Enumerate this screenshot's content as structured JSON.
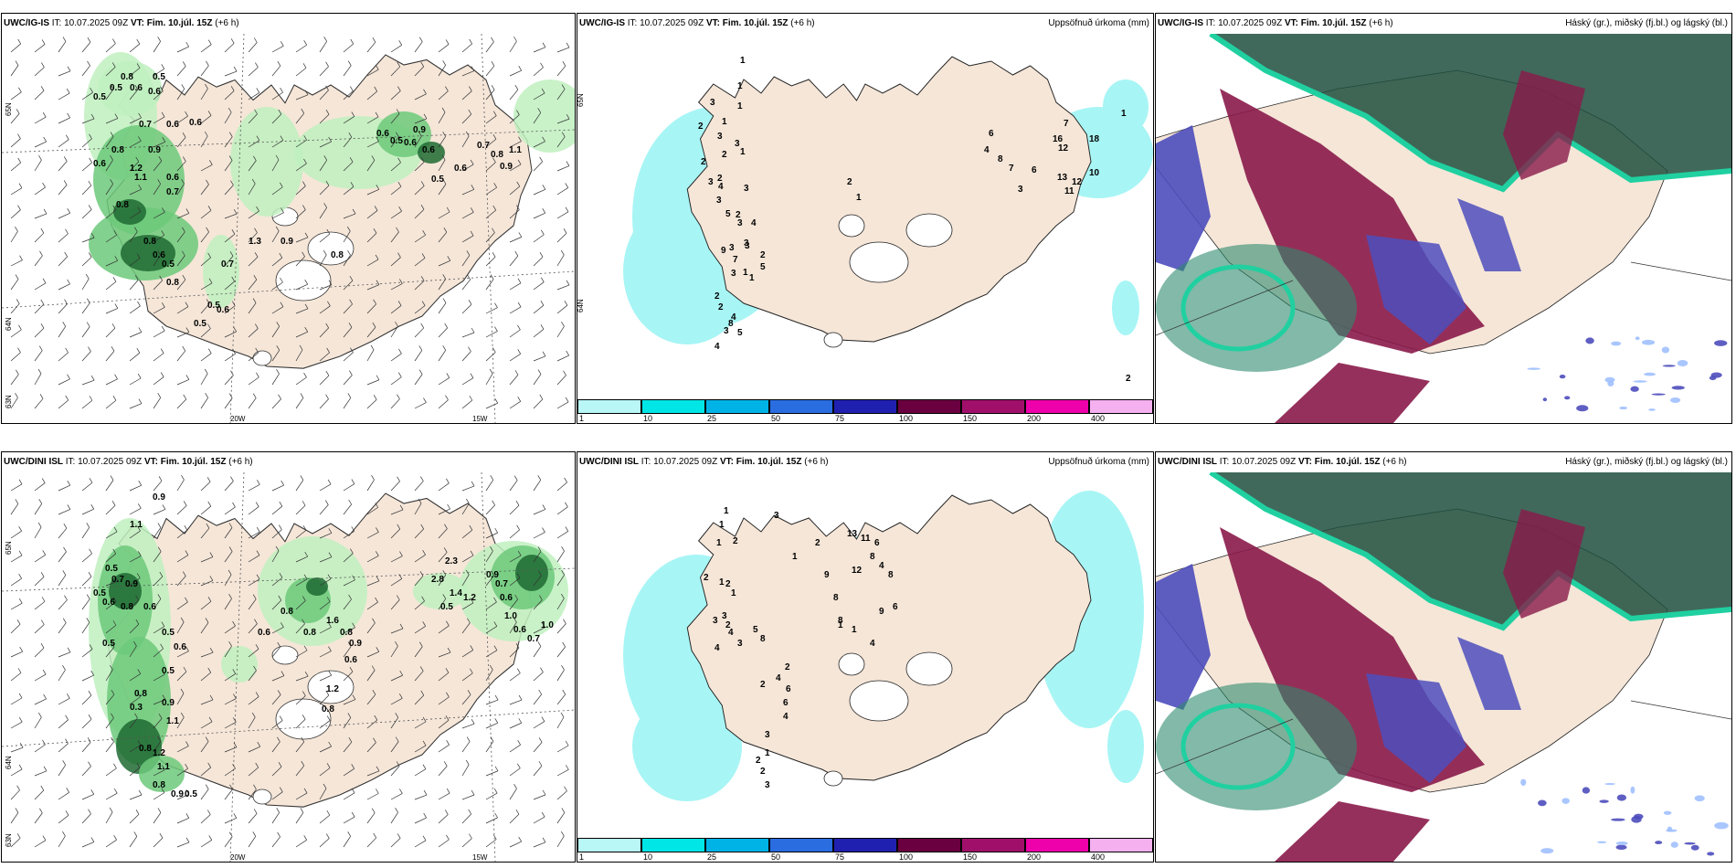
{
  "colors": {
    "land": "#f5e6d8",
    "sea": "#ffffff",
    "precip_light": "#bff0c0",
    "precip_mid": "#6cc97a",
    "precip_dark": "#1e6a32",
    "precip_bluegreen": "#a8f5f5",
    "cloud_high": "#1f4f3e",
    "cloud_mid": "#8a1a4a",
    "cloud_low": "#4d4dbd",
    "cloud_cyan": "#20d0a0"
  },
  "panels": [
    {
      "id": "ig-top-wind",
      "model": "UWC/IG-IS",
      "it_label": "IT:",
      "it_value": "10.07.2025 09Z",
      "vt_label": "VT:",
      "vt_value": "Fim. 10.júl. 15Z",
      "lead": "(+6 h)",
      "right_title": "",
      "lat_labels": [
        "65N",
        "64N",
        "63N"
      ],
      "lon_labels": [
        "20W",
        "15W"
      ],
      "values": [
        "0.8",
        "0.5",
        "0.5",
        "0.6",
        "0.6",
        "0.5",
        "0.7",
        "0.6",
        "0.6",
        "0.8",
        "0.9",
        "0.6",
        "1.2",
        "1.1",
        "0.6",
        "0.7",
        "0.8",
        "0.8",
        "0.6",
        "0.5",
        "0.8",
        "0.5",
        "0.6",
        "0.5",
        "1.3",
        "0.7",
        "0.9",
        "0.8",
        "0.6",
        "0.5",
        "0.6",
        "0.9",
        "0.6",
        "0.5",
        "0.6",
        "0.7",
        "0.8",
        "0.9",
        "1.1"
      ]
    },
    {
      "id": "ig-top-precip",
      "model": "UWC/IG-IS",
      "it_label": "IT:",
      "it_value": "10.07.2025 09Z",
      "vt_label": "VT:",
      "vt_value": "Fim. 10.júl. 15Z",
      "lead": "(+6 h)",
      "right_title": "Uppsöfnuð úrkoma (mm)",
      "lat_labels": [
        "65N",
        "64N"
      ],
      "lon_labels": [],
      "values": [
        "1",
        "1",
        "1",
        "1",
        "3",
        "2",
        "2",
        "3",
        "3",
        "1",
        "2",
        "2",
        "3",
        "4",
        "3",
        "3",
        "2",
        "3",
        "4",
        "3",
        "5",
        "3",
        "3",
        "9",
        "7",
        "3",
        "2",
        "2",
        "4",
        "3",
        "4",
        "8",
        "5",
        "2",
        "5",
        "1",
        "1",
        "2",
        "1",
        "6",
        "4",
        "8",
        "7",
        "3",
        "6",
        "16",
        "12",
        "13",
        "12",
        "11",
        "10",
        "7",
        "18",
        "1",
        "2"
      ],
      "colorbar": {
        "ticks": [
          "1",
          "10",
          "25",
          "50",
          "75",
          "100",
          "150",
          "200",
          "400"
        ],
        "colors": [
          "#b9f6f6",
          "#00e5e5",
          "#00b3e6",
          "#2a6de0",
          "#2020b0",
          "#6a0040",
          "#a0106a",
          "#ee00aa",
          "#f5b0f0"
        ]
      }
    },
    {
      "id": "ig-top-cloud",
      "model": "UWC/IG-IS",
      "it_label": "IT:",
      "it_value": "10.07.2025 09Z",
      "vt_label": "VT:",
      "vt_value": "Fim. 10.júl. 15Z",
      "lead": "(+6 h)",
      "right_title": "Háský (gr.), miðský (fj.bl.) og lágský (bl.)"
    },
    {
      "id": "dini-bottom-wind",
      "model": "UWC/DINI ISL",
      "it_label": "IT:",
      "it_value": "10.07.2025 09Z",
      "vt_label": "VT:",
      "vt_value": "Fim. 10.júl. 15Z",
      "lead": "(+6 h)",
      "right_title": "",
      "lat_labels": [
        "65N",
        "64N",
        "63N"
      ],
      "lon_labels": [
        "20W",
        "15W"
      ],
      "values": [
        "0.9",
        "1.1",
        "0.5",
        "0.7",
        "0.9",
        "0.5",
        "0.6",
        "0.8",
        "0.6",
        "0.5",
        "0.5",
        "0.6",
        "0.5",
        "0.8",
        "0.9",
        "0.3",
        "1.1",
        "0.8",
        "1.2",
        "1.1",
        "0.8",
        "0.9",
        "0.5",
        "0.6",
        "0.8",
        "0.8",
        "1.6",
        "0.8",
        "0.9",
        "0.6",
        "1.2",
        "0.8",
        "2.3",
        "2.8",
        "1.4",
        "1.2",
        "0.5",
        "0.9",
        "0.7",
        "0.6",
        "1.0",
        "0.6",
        "0.7",
        "1.0"
      ]
    },
    {
      "id": "dini-bottom-precip",
      "model": "UWC/DINI ISL",
      "it_label": "IT:",
      "it_value": "10.07.2025 09Z",
      "vt_label": "VT:",
      "vt_value": "Fim. 10.júl. 15Z",
      "lead": "(+6 h)",
      "right_title": "Uppsöfnuð úrkoma (mm)",
      "lat_labels": [],
      "lon_labels": [],
      "values": [
        "1",
        "1",
        "1",
        "2",
        "3",
        "2",
        "1",
        "2",
        "1",
        "3",
        "3",
        "2",
        "4",
        "4",
        "3",
        "5",
        "8",
        "2",
        "4",
        "2",
        "6",
        "6",
        "4",
        "3",
        "1",
        "2",
        "2",
        "3",
        "1",
        "2",
        "13",
        "11",
        "6",
        "8",
        "12",
        "9",
        "8",
        "4",
        "8",
        "6",
        "9",
        "8",
        "1",
        "1",
        "4"
      ],
      "colorbar": {
        "ticks": [
          "1",
          "10",
          "25",
          "50",
          "75",
          "100",
          "150",
          "200",
          "400"
        ],
        "colors": [
          "#b9f6f6",
          "#00e5e5",
          "#00b3e6",
          "#2a6de0",
          "#2020b0",
          "#6a0040",
          "#a0106a",
          "#ee00aa",
          "#f5b0f0"
        ]
      }
    },
    {
      "id": "dini-bottom-cloud",
      "model": "UWC/DINI ISL",
      "it_label": "IT:",
      "it_value": "10.07.2025 09Z",
      "vt_label": "VT:",
      "vt_value": "Fim. 10.júl. 15Z",
      "lead": "(+6 h)",
      "right_title": "Háský (gr.), miðský (fj.bl.) og lágský (bl.)"
    }
  ]
}
